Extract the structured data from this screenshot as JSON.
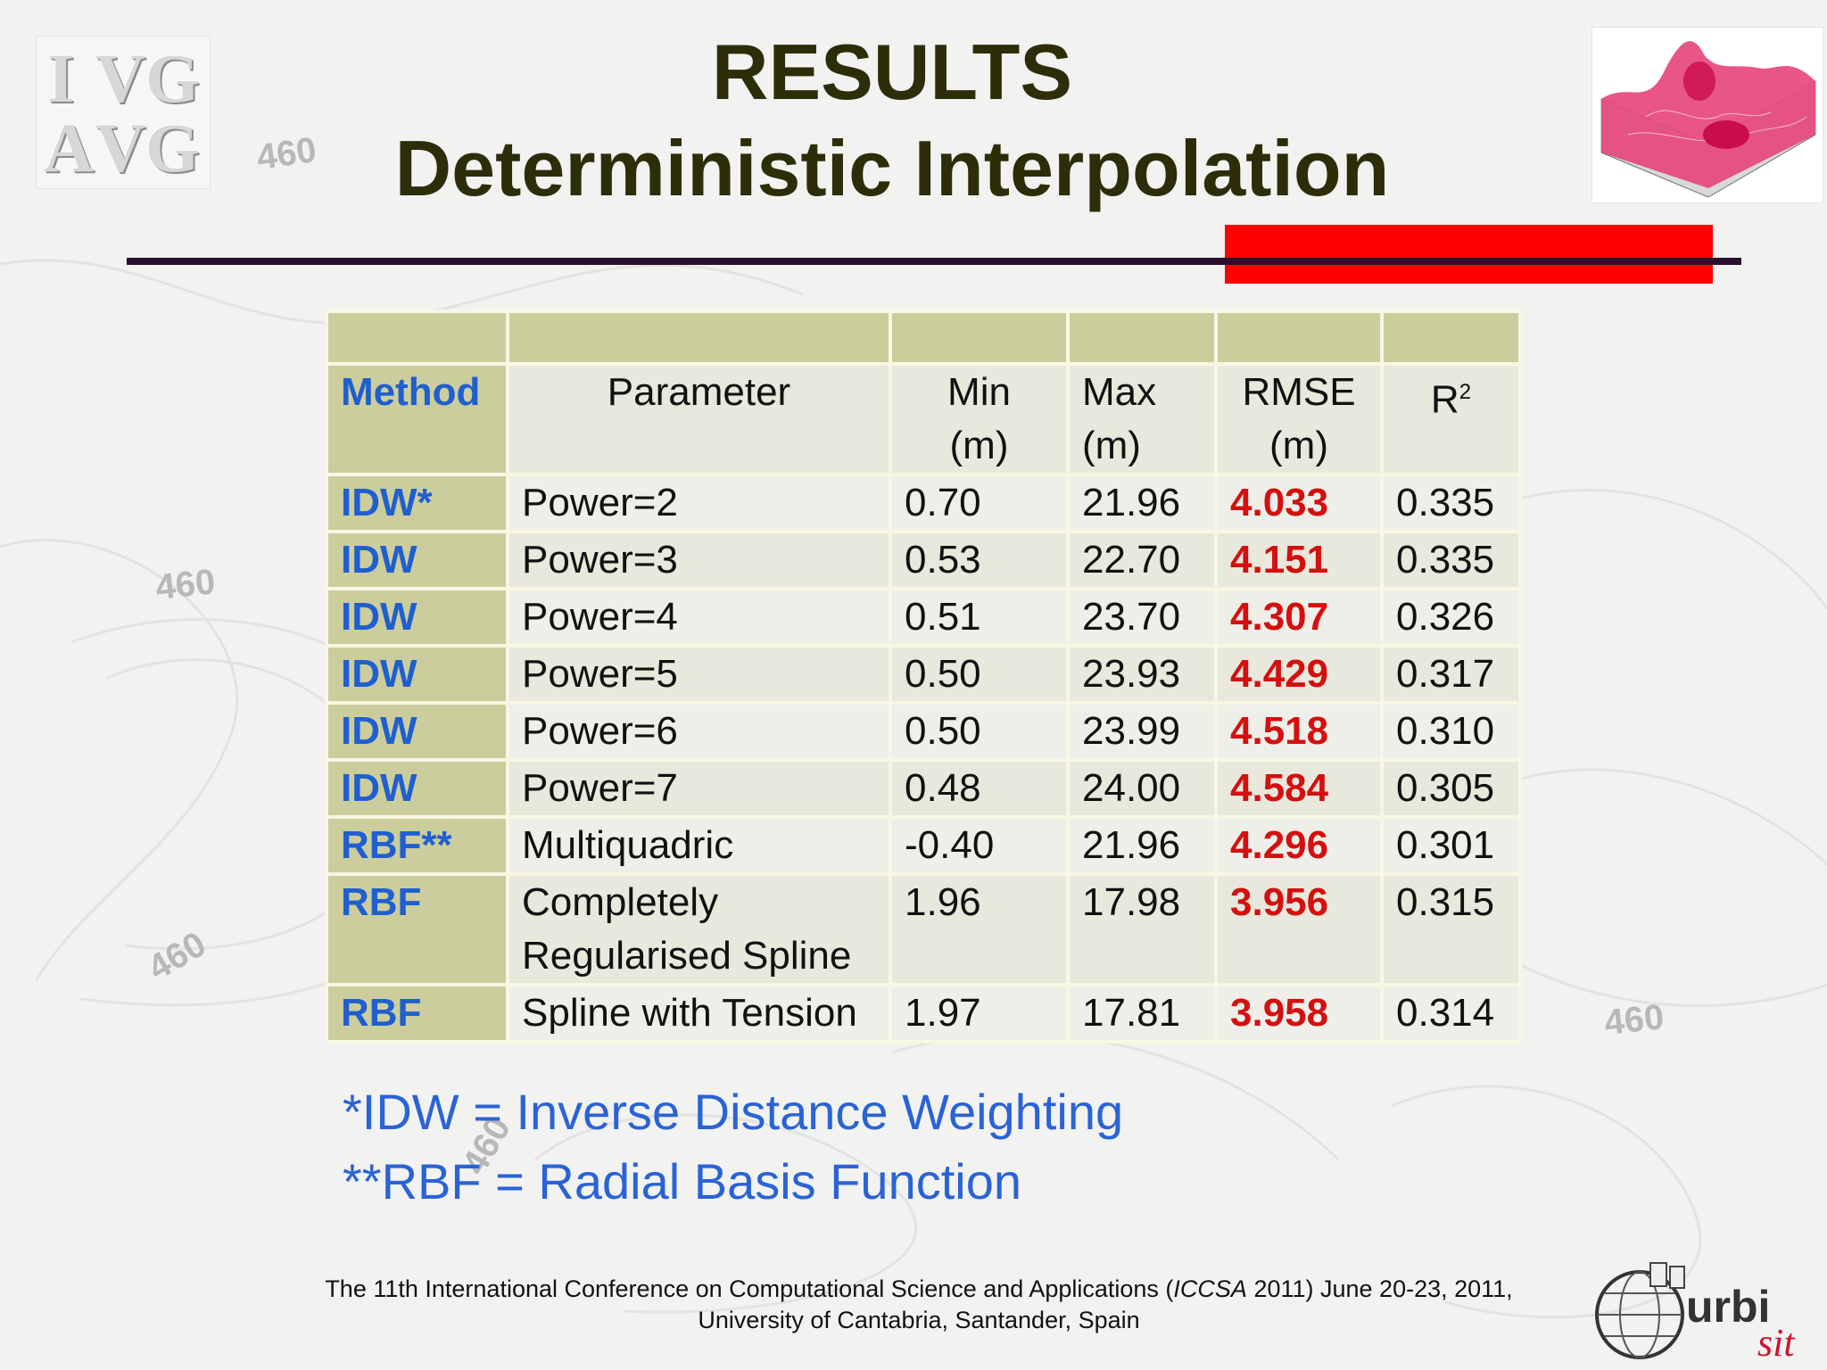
{
  "slide": {
    "title_line1": "RESULTS",
    "title_line2": "Deterministic Interpolation",
    "background_contour_label": "460",
    "accent_colors": {
      "title": "#2d2d0a",
      "method": "#1f5fcf",
      "rmse": "#d50f0f",
      "notes": "#2a63d6",
      "rule_red": "#ff0000",
      "rule_dark": "#2a0f2f"
    }
  },
  "logos": {
    "left_logo_letters": [
      "I",
      "V",
      "G",
      "A",
      "V",
      "G"
    ],
    "right_logo_icon": "3d-surface-plot-icon",
    "bottom_logo_icon": "globe-icon",
    "bottom_logo_text": "urbisit"
  },
  "table": {
    "headers": {
      "method": "Method",
      "parameter": "Parameter",
      "min_line1": "Min",
      "min_line2": "(m)",
      "max_line1": "Max",
      "max_line2": "(m)",
      "rmse_line1": "RMSE",
      "rmse_line2": "(m)",
      "r2_base": "R",
      "r2_sup": "2"
    },
    "rows": [
      {
        "method": "IDW*",
        "parameter": "Power=2",
        "min": "0.70",
        "max": "21.96",
        "rmse": "4.033",
        "r2": "0.335"
      },
      {
        "method": "IDW",
        "parameter": "Power=3",
        "min": "0.53",
        "max": "22.70",
        "rmse": "4.151",
        "r2": "0.335"
      },
      {
        "method": "IDW",
        "parameter": "Power=4",
        "min": "0.51",
        "max": "23.70",
        "rmse": "4.307",
        "r2": "0.326"
      },
      {
        "method": "IDW",
        "parameter": "Power=5",
        "min": "0.50",
        "max": "23.93",
        "rmse": "4.429",
        "r2": "0.317"
      },
      {
        "method": "IDW",
        "parameter": "Power=6",
        "min": "0.50",
        "max": "23.99",
        "rmse": "4.518",
        "r2": "0.310"
      },
      {
        "method": "IDW",
        "parameter": "Power=7",
        "min": "0.48",
        "max": "24.00",
        "rmse": "4.584",
        "r2": "0.305"
      },
      {
        "method": "RBF**",
        "parameter": "Multiquadric",
        "min": "-0.40",
        "max": "21.96",
        "rmse": "4.296",
        "r2": "0.301"
      },
      {
        "method": "RBF",
        "parameter_line1": "Completely",
        "parameter_line2": "Regularised Spline",
        "min": "1.96",
        "max": "17.98",
        "rmse": "3.956",
        "r2": "0.315"
      },
      {
        "method": "RBF",
        "parameter": "Spline with Tension",
        "min": "1.97",
        "max": "17.81",
        "rmse": "3.958",
        "r2": "0.314"
      }
    ]
  },
  "notes": {
    "idw": "*IDW = Inverse Distance Weighting",
    "rbf": "**RBF = Radial Basis Function"
  },
  "footer": {
    "line1_pre": "The 11th International Conference on Computational Science and Applications (",
    "line1_em": "ICCSA",
    "line1_post": " 2011) June 20-23, 2011,",
    "line2": "University of Cantabria, Santander, Spain"
  }
}
